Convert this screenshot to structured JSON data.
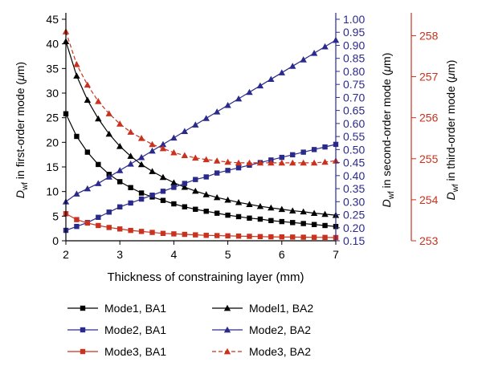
{
  "chart_data": {
    "type": "line",
    "x": [
      2,
      2.2,
      2.4,
      2.6,
      2.8,
      3,
      3.2,
      3.4,
      3.6,
      3.8,
      4,
      4.2,
      4.4,
      4.6,
      4.8,
      5,
      5.2,
      5.4,
      5.6,
      5.8,
      6,
      6.2,
      6.4,
      6.6,
      6.8,
      7
    ],
    "xlabel": "Thickness of constraining layer (mm)",
    "xlim": [
      2,
      7
    ],
    "xticks": [
      "2",
      "3",
      "4",
      "5",
      "6",
      "7"
    ],
    "axes": {
      "left": {
        "label_main": "D",
        "label_sub": "wf",
        "label_rest": " in first-order mode (",
        "label_unit": "μ",
        "label_end": "m)",
        "color": "#000000",
        "lim": [
          0,
          45
        ],
        "ticks": [
          "0",
          "5",
          "10",
          "15",
          "20",
          "25",
          "30",
          "35",
          "40",
          "45"
        ]
      },
      "right1": {
        "label_main": "D",
        "label_sub": "wf",
        "label_rest": " in second-order mode (",
        "label_unit": "μ",
        "label_end": "m)",
        "color": "#2a2a8c",
        "lim": [
          0.15,
          1.0
        ],
        "ticks": [
          "0.15",
          "0.20",
          "0.25",
          "0.30",
          "0.35",
          "0.40",
          "0.45",
          "0.50",
          "0.55",
          "0.60",
          "0.65",
          "0.70",
          "0.75",
          "0.80",
          "0.85",
          "0.90",
          "0.95",
          "1.00"
        ]
      },
      "right2": {
        "label_main": "D",
        "label_sub": "wf",
        "label_rest": " in third-order mode (",
        "label_unit": "μ",
        "label_end": "m)",
        "color": "#c8321e",
        "lim": [
          253,
          258.4
        ],
        "ticks": [
          "253",
          "254",
          "255",
          "256",
          "257",
          "258"
        ]
      }
    },
    "series": [
      {
        "name": "Mode1, BA1",
        "axis": "left",
        "marker": "square",
        "dashed": false,
        "color": "#000000",
        "values": [
          25.8,
          21.2,
          18.0,
          15.5,
          13.5,
          12.0,
          10.8,
          9.7,
          8.9,
          8.2,
          7.5,
          6.9,
          6.4,
          6.0,
          5.6,
          5.2,
          4.9,
          4.6,
          4.4,
          4.1,
          3.9,
          3.7,
          3.5,
          3.3,
          3.1,
          2.9
        ]
      },
      {
        "name": "Model1, BA2",
        "axis": "left",
        "marker": "triangle",
        "dashed": false,
        "color": "#000000",
        "values": [
          40.5,
          33.5,
          28.6,
          24.8,
          21.7,
          19.2,
          17.2,
          15.5,
          14.1,
          12.9,
          11.8,
          10.9,
          10.1,
          9.4,
          8.8,
          8.3,
          7.8,
          7.4,
          7.0,
          6.7,
          6.4,
          6.1,
          5.9,
          5.6,
          5.4,
          5.2
        ]
      },
      {
        "name": "Mode2, BA1",
        "axis": "right1",
        "marker": "square",
        "dashed": false,
        "color": "#2a2a8c",
        "values": [
          0.19,
          0.205,
          0.22,
          0.24,
          0.26,
          0.28,
          0.295,
          0.31,
          0.325,
          0.34,
          0.355,
          0.37,
          0.385,
          0.395,
          0.41,
          0.42,
          0.43,
          0.44,
          0.45,
          0.46,
          0.47,
          0.48,
          0.49,
          0.5,
          0.51,
          0.52
        ]
      },
      {
        "name": "Mode2, BA2",
        "axis": "right1",
        "marker": "triangle",
        "dashed": false,
        "color": "#2a2a8c",
        "values": [
          0.3,
          0.33,
          0.35,
          0.37,
          0.395,
          0.42,
          0.445,
          0.47,
          0.495,
          0.52,
          0.545,
          0.57,
          0.595,
          0.62,
          0.645,
          0.67,
          0.695,
          0.72,
          0.745,
          0.77,
          0.795,
          0.82,
          0.845,
          0.87,
          0.895,
          0.92
        ]
      },
      {
        "name": "Mode3, BA1",
        "axis": "left",
        "marker": "square",
        "dashed": false,
        "color": "#c8321e",
        "values": [
          5.5,
          4.3,
          3.6,
          3.1,
          2.7,
          2.4,
          2.1,
          1.9,
          1.7,
          1.5,
          1.4,
          1.3,
          1.2,
          1.1,
          1.05,
          1.0,
          0.95,
          0.9,
          0.85,
          0.8,
          0.78,
          0.75,
          0.72,
          0.7,
          0.68,
          0.65
        ]
      },
      {
        "name": "Mode3, BA2",
        "axis": "right2",
        "marker": "triangle",
        "dashed": true,
        "color": "#c8321e",
        "values": [
          258.1,
          257.3,
          256.8,
          256.4,
          256.1,
          255.85,
          255.65,
          255.5,
          255.35,
          255.25,
          255.15,
          255.08,
          255.02,
          254.98,
          254.95,
          254.92,
          254.9,
          254.9,
          254.9,
          254.9,
          254.9,
          254.9,
          254.9,
          254.9,
          254.92,
          254.95
        ]
      }
    ],
    "legend_position": "bottom"
  }
}
